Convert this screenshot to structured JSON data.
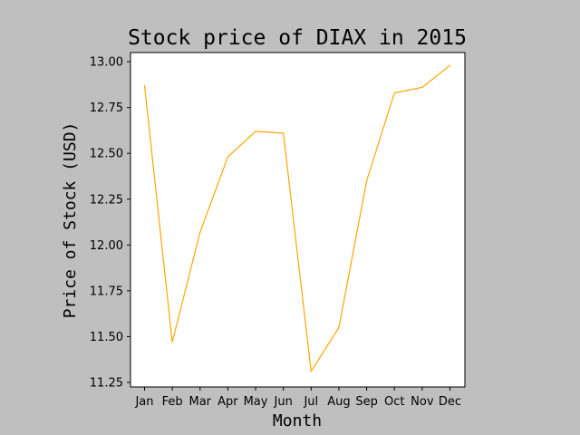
{
  "chart_data": {
    "type": "line",
    "title": "Stock price of DIAX in 2015",
    "xlabel": "Month",
    "ylabel": "Price of Stock (USD)",
    "categories": [
      "Jan",
      "Feb",
      "Mar",
      "Apr",
      "May",
      "Jun",
      "Jul",
      "Aug",
      "Sep",
      "Oct",
      "Nov",
      "Dec"
    ],
    "series": [
      {
        "values": [
          12.87,
          11.47,
          12.07,
          12.48,
          12.62,
          12.61,
          11.31,
          11.55,
          12.35,
          12.83,
          12.86,
          12.98
        ],
        "color": "#ffa500"
      }
    ],
    "ylim": [
      11.225,
      13.05
    ],
    "yticks": [
      "11.25",
      "11.50",
      "11.75",
      "12.00",
      "12.25",
      "12.50",
      "12.75",
      "13.00"
    ],
    "grid": false,
    "legend": "none"
  }
}
